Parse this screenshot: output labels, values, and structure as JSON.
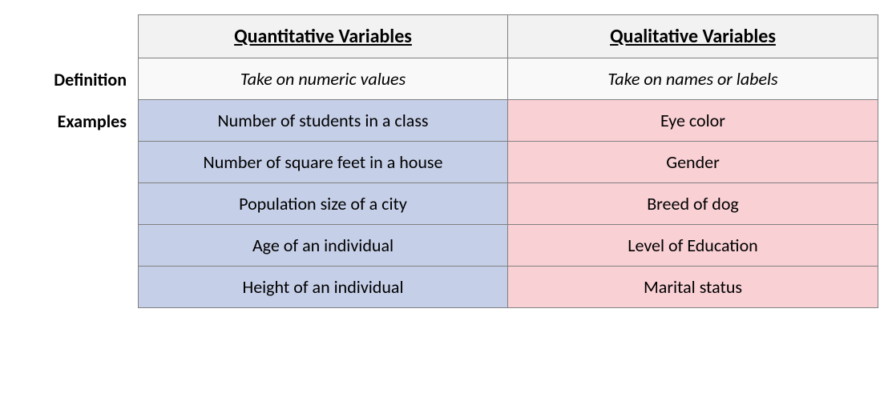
{
  "table": {
    "columns": {
      "quantitative": "Quantitative Variables",
      "qualitative": "Qualitative Variables"
    },
    "row_labels": {
      "definition": "Definition",
      "examples": "Examples"
    },
    "definition": {
      "quantitative": "Take on numeric values",
      "qualitative": "Take on names or labels"
    },
    "examples": {
      "quantitative": [
        "Number of students in a class",
        "Number of square feet in a house",
        "Population size of a city",
        "Age of an individual",
        "Height of an individual"
      ],
      "qualitative": [
        "Eye color",
        "Gender",
        "Breed of dog",
        "Level of Education",
        "Marital status"
      ]
    },
    "colors": {
      "header_bg": "#f2f2f2",
      "definition_bg": "#f9f9f9",
      "quantitative_bg": "#c5cfe7",
      "qualitative_bg": "#f9d0d4",
      "border": "#808080",
      "text": "#000000"
    },
    "fonts": {
      "family": "Calibri",
      "header_size_pt": 18,
      "body_size_pt": 16,
      "header_weight": "bold",
      "definition_style": "italic"
    }
  }
}
